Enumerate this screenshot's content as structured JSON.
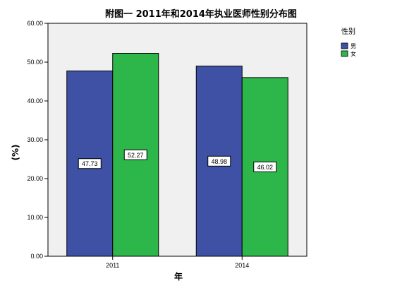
{
  "chart_data": {
    "type": "bar",
    "title": "附图一  2011年和2014年执业医师性别分布图",
    "xlabel": "年",
    "ylabel": "(%)",
    "categories": [
      "2011",
      "2014"
    ],
    "series": [
      {
        "name": "男",
        "values": [
          47.73,
          48.98
        ],
        "color": "#3F51A5",
        "labels": [
          "47.73",
          "48.98"
        ]
      },
      {
        "name": "女",
        "values": [
          52.27,
          46.02
        ],
        "color": "#2DB64A",
        "labels": [
          "52.27",
          "46.02"
        ]
      }
    ],
    "ylim": [
      0,
      60
    ],
    "yticks": [
      "0.00",
      "10.00",
      "20.00",
      "30.00",
      "40.00",
      "50.00",
      "60.00"
    ],
    "legend": {
      "title": "性别",
      "placement": "right"
    },
    "grid": false,
    "plot_background": "#F0F0F0"
  }
}
